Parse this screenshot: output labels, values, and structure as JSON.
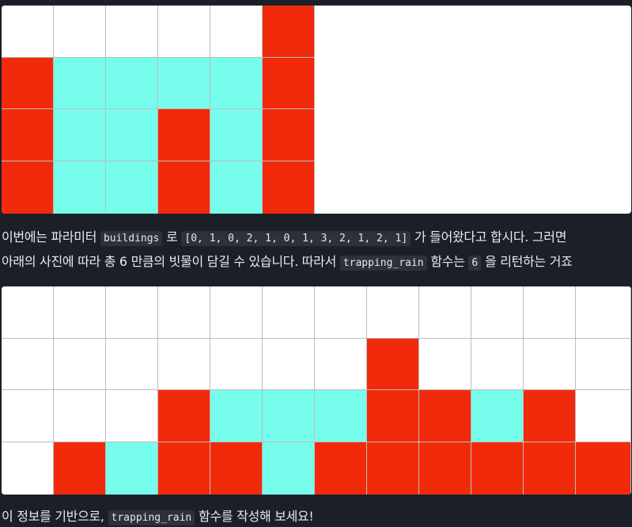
{
  "colors": {
    "background": "#1b1f28",
    "wall": "#f22a0c",
    "water": "#77fdeb",
    "empty": "#ffffff",
    "grid_line": "#bcbcbc",
    "code_bg": "#2d313a"
  },
  "grid_top": {
    "columns": 6,
    "rows": 4,
    "cells": [
      [
        "empty",
        "empty",
        "empty",
        "empty",
        "empty",
        "wall"
      ],
      [
        "wall",
        "water",
        "water",
        "water",
        "water",
        "wall"
      ],
      [
        "wall",
        "water",
        "water",
        "wall",
        "water",
        "wall"
      ],
      [
        "wall",
        "water",
        "water",
        "wall",
        "water",
        "wall"
      ]
    ]
  },
  "paragraph1": {
    "line1": {
      "t1": "이번에는 파라미터 ",
      "code1": "buildings",
      "t2": " 로 ",
      "code2": "[0, 1, 0, 2, 1, 0, 1, 3, 2, 1, 2, 1]",
      "t3": " 가 들어왔다고 합시다. 그러면"
    },
    "line2": {
      "t1": "아래의 사진에 따라 총 6 만큼의 빗물이 담길 수 있습니다. 따라서 ",
      "code1": "trapping_rain",
      "t2": " 함수는 ",
      "code2": "6",
      "t3": " 을 리턴하는 거죠"
    }
  },
  "grid_bottom": {
    "buildings": [
      0,
      1,
      0,
      2,
      1,
      0,
      1,
      3,
      2,
      1,
      2,
      1
    ],
    "columns": 12,
    "rows": 4,
    "cells": [
      [
        "empty",
        "empty",
        "empty",
        "empty",
        "empty",
        "empty",
        "empty",
        "empty",
        "empty",
        "empty",
        "empty",
        "empty"
      ],
      [
        "empty",
        "empty",
        "empty",
        "empty",
        "empty",
        "empty",
        "empty",
        "wall",
        "empty",
        "empty",
        "empty",
        "empty"
      ],
      [
        "empty",
        "empty",
        "empty",
        "wall",
        "water",
        "water",
        "water",
        "wall",
        "wall",
        "water",
        "wall",
        "empty"
      ],
      [
        "empty",
        "wall",
        "water",
        "wall",
        "wall",
        "water",
        "wall",
        "wall",
        "wall",
        "wall",
        "wall",
        "wall"
      ]
    ]
  },
  "paragraph2": {
    "t1": "이 정보를 기반으로, ",
    "code1": "trapping_rain",
    "t2": " 함수를 작성해 보세요!"
  }
}
